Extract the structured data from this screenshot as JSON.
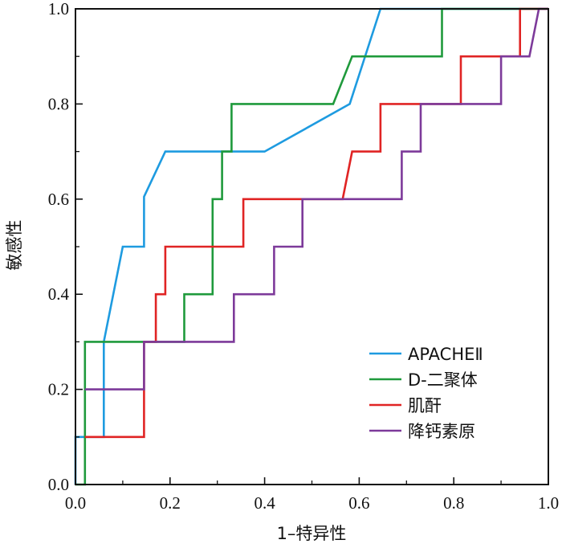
{
  "chart_data": {
    "type": "line",
    "title": "",
    "xlabel": "1–特异性",
    "ylabel": "敏感性",
    "xlim": [
      0,
      1
    ],
    "ylim": [
      0,
      1
    ],
    "xticks": [
      "0.0",
      "0.2",
      "0.4",
      "0.6",
      "0.8",
      "1.0"
    ],
    "yticks": [
      "0.0",
      "0.2",
      "0.4",
      "0.6",
      "0.8",
      "1.0"
    ],
    "grid": false,
    "legend_position": "bottom-right",
    "series": [
      {
        "name": "APACHEⅡ",
        "color": "#1e9be0",
        "points": [
          [
            0,
            0
          ],
          [
            0,
            0.1
          ],
          [
            0.06,
            0.1
          ],
          [
            0.06,
            0.3
          ],
          [
            0.1,
            0.5
          ],
          [
            0.145,
            0.5
          ],
          [
            0.145,
            0.605
          ],
          [
            0.19,
            0.7
          ],
          [
            0.4,
            0.7
          ],
          [
            0.58,
            0.8
          ],
          [
            0.645,
            1.0
          ],
          [
            1.0,
            1.0
          ]
        ]
      },
      {
        "name": "D-二聚体",
        "color": "#1f9a3c",
        "points": [
          [
            0,
            0
          ],
          [
            0.02,
            0
          ],
          [
            0.02,
            0.3
          ],
          [
            0.23,
            0.3
          ],
          [
            0.23,
            0.4
          ],
          [
            0.29,
            0.4
          ],
          [
            0.29,
            0.6
          ],
          [
            0.31,
            0.6
          ],
          [
            0.31,
            0.7
          ],
          [
            0.33,
            0.7
          ],
          [
            0.33,
            0.8
          ],
          [
            0.545,
            0.8
          ],
          [
            0.585,
            0.9
          ],
          [
            0.775,
            0.9
          ],
          [
            0.775,
            1.0
          ],
          [
            1.0,
            1.0
          ]
        ]
      },
      {
        "name": "肌酐",
        "color": "#e02424",
        "points": [
          [
            0.02,
            0.1
          ],
          [
            0.145,
            0.1
          ],
          [
            0.145,
            0.3
          ],
          [
            0.17,
            0.3
          ],
          [
            0.17,
            0.4
          ],
          [
            0.19,
            0.4
          ],
          [
            0.19,
            0.5
          ],
          [
            0.355,
            0.5
          ],
          [
            0.355,
            0.6
          ],
          [
            0.565,
            0.6
          ],
          [
            0.585,
            0.7
          ],
          [
            0.645,
            0.7
          ],
          [
            0.645,
            0.8
          ],
          [
            0.815,
            0.8
          ],
          [
            0.815,
            0.9
          ],
          [
            0.94,
            0.9
          ],
          [
            0.94,
            1.0
          ],
          [
            1.0,
            1.0
          ]
        ]
      },
      {
        "name": "降钙素原",
        "color": "#7d3a9a",
        "points": [
          [
            0.02,
            0.2
          ],
          [
            0.145,
            0.2
          ],
          [
            0.145,
            0.3
          ],
          [
            0.335,
            0.3
          ],
          [
            0.335,
            0.4
          ],
          [
            0.42,
            0.4
          ],
          [
            0.42,
            0.5
          ],
          [
            0.48,
            0.5
          ],
          [
            0.48,
            0.6
          ],
          [
            0.69,
            0.6
          ],
          [
            0.69,
            0.7
          ],
          [
            0.73,
            0.7
          ],
          [
            0.73,
            0.8
          ],
          [
            0.9,
            0.8
          ],
          [
            0.9,
            0.9
          ],
          [
            0.96,
            0.9
          ],
          [
            0.98,
            1.0
          ],
          [
            1.0,
            1.0
          ]
        ]
      }
    ]
  }
}
